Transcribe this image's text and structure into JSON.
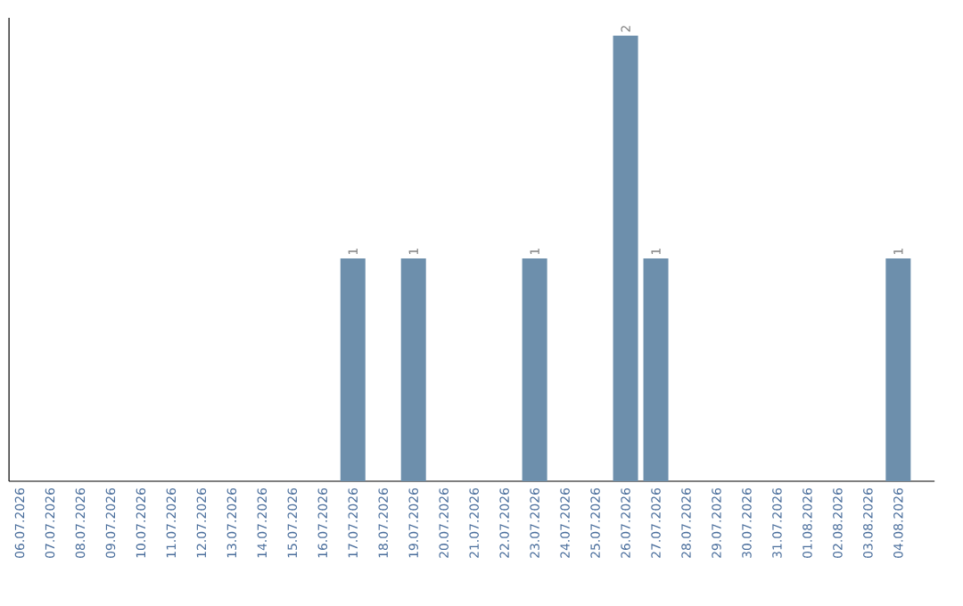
{
  "chart_data": {
    "type": "bar",
    "categories": [
      "06.07.2026",
      "07.07.2026",
      "08.07.2026",
      "09.07.2026",
      "10.07.2026",
      "11.07.2026",
      "12.07.2026",
      "13.07.2026",
      "14.07.2026",
      "15.07.2026",
      "16.07.2026",
      "17.07.2026",
      "18.07.2026",
      "19.07.2026",
      "20.07.2026",
      "21.07.2026",
      "22.07.2026",
      "23.07.2026",
      "24.07.2026",
      "25.07.2026",
      "26.07.2026",
      "27.07.2026",
      "28.07.2026",
      "29.07.2026",
      "30.07.2026",
      "31.07.2026",
      "01.08.2026",
      "02.08.2026",
      "03.08.2026",
      "04.08.2026"
    ],
    "values": [
      0,
      0,
      0,
      0,
      0,
      0,
      0,
      0,
      0,
      0,
      0,
      1,
      0,
      1,
      0,
      0,
      0,
      1,
      0,
      0,
      2,
      1,
      0,
      0,
      0,
      0,
      0,
      0,
      0,
      1
    ],
    "value_labels": [
      null,
      null,
      null,
      null,
      null,
      null,
      null,
      null,
      null,
      null,
      null,
      "1",
      null,
      "1",
      null,
      null,
      null,
      "1",
      null,
      null,
      "2",
      "1",
      null,
      null,
      null,
      null,
      null,
      null,
      null,
      "1"
    ],
    "color": "#6d8fac"
  }
}
